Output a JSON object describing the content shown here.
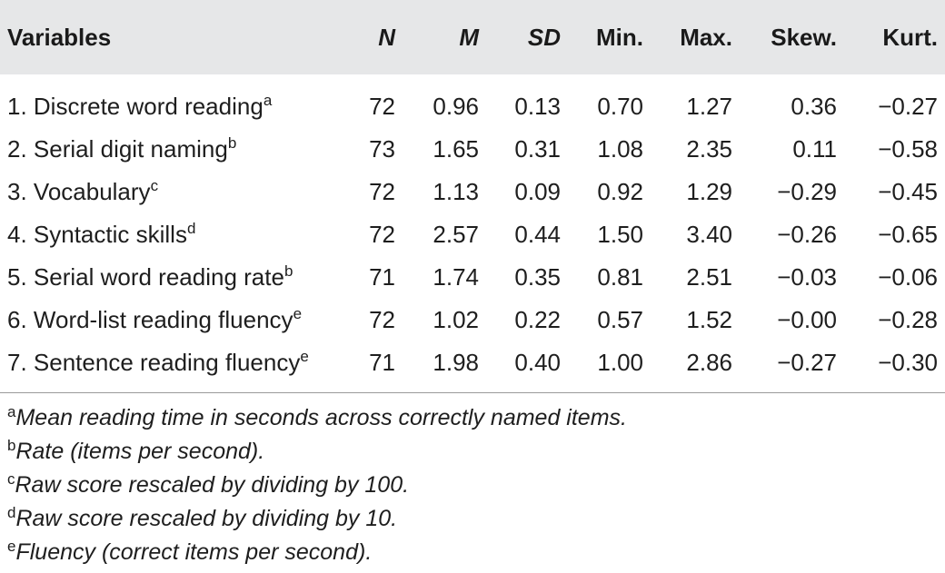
{
  "table": {
    "headers": {
      "variables": "Variables",
      "n": "N",
      "m": "M",
      "sd": "SD",
      "min": "Min.",
      "max": "Max.",
      "skew": "Skew.",
      "kurt": "Kurt."
    },
    "rows": [
      {
        "label": "1. Discrete word reading",
        "mark": "a",
        "n": "72",
        "m": "0.96",
        "sd": "0.13",
        "min": "0.70",
        "max": "1.27",
        "skew": "0.36",
        "kurt": "−0.27"
      },
      {
        "label": "2. Serial digit naming",
        "mark": "b",
        "n": "73",
        "m": "1.65",
        "sd": "0.31",
        "min": "1.08",
        "max": "2.35",
        "skew": "0.11",
        "kurt": "−0.58"
      },
      {
        "label": "3. Vocabulary",
        "mark": "c",
        "n": "72",
        "m": "1.13",
        "sd": "0.09",
        "min": "0.92",
        "max": "1.29",
        "skew": "−0.29",
        "kurt": "−0.45"
      },
      {
        "label": "4. Syntactic skills",
        "mark": "d",
        "n": "72",
        "m": "2.57",
        "sd": "0.44",
        "min": "1.50",
        "max": "3.40",
        "skew": "−0.26",
        "kurt": "−0.65"
      },
      {
        "label": "5. Serial word reading rate",
        "mark": "b",
        "n": "71",
        "m": "1.74",
        "sd": "0.35",
        "min": "0.81",
        "max": "2.51",
        "skew": "−0.03",
        "kurt": "−0.06"
      },
      {
        "label": "6. Word-list reading fluency",
        "mark": "e",
        "n": "72",
        "m": "1.02",
        "sd": "0.22",
        "min": "0.57",
        "max": "1.52",
        "skew": "−0.00",
        "kurt": "−0.28"
      },
      {
        "label": "7. Sentence reading fluency",
        "mark": "e",
        "n": "71",
        "m": "1.98",
        "sd": "0.40",
        "min": "1.00",
        "max": "2.86",
        "skew": "−0.27",
        "kurt": "−0.30"
      }
    ]
  },
  "notes": [
    {
      "mark": "a",
      "text": "Mean reading time in seconds across correctly named items."
    },
    {
      "mark": "b",
      "text": "Rate (items per second)."
    },
    {
      "mark": "c",
      "text": "Raw score rescaled by dividing by 100."
    },
    {
      "mark": "d",
      "text": "Raw score rescaled by dividing by 10."
    },
    {
      "mark": "e",
      "text": "Fluency (correct items per second)."
    }
  ]
}
